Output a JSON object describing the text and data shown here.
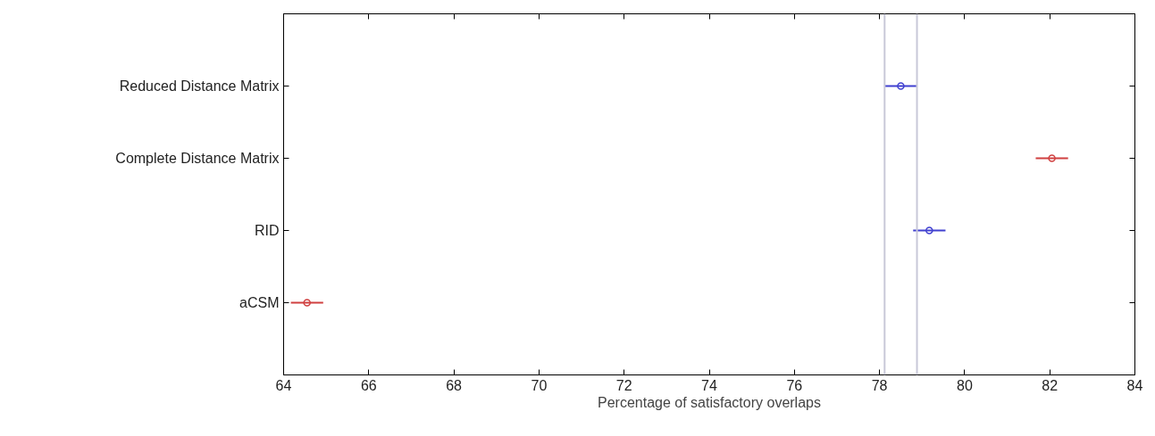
{
  "chart_data": {
    "type": "scatter",
    "orientation": "horizontal",
    "xlabel": "Percentage of satisfactory overlaps",
    "categories": [
      "Reduced Distance Matrix",
      "Complete Distance Matrix",
      "RID",
      "aCSM"
    ],
    "values": [
      78.5,
      82.05,
      79.17,
      64.55
    ],
    "errors": [
      0.38,
      0.38,
      0.38,
      0.38
    ],
    "colors": [
      "#4040d0",
      "#d04040",
      "#4040d0",
      "#d04040"
    ],
    "marker": "circle",
    "xlim": [
      64,
      84
    ],
    "xticks": [
      64,
      66,
      68,
      70,
      72,
      74,
      76,
      78,
      80,
      82,
      84
    ],
    "grid": false,
    "ref_lines": [
      {
        "axis": "x",
        "value": 78.12,
        "color": "#c8c8d8"
      },
      {
        "axis": "x",
        "value": 78.88,
        "color": "#c8c8d8"
      }
    ]
  }
}
